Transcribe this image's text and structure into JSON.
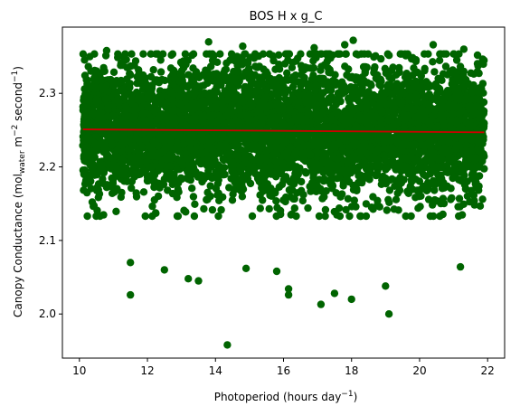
{
  "chart_data": {
    "type": "scatter",
    "title": "BOS H x g_C",
    "xlabel": "Photoperiod (hours day",
    "xlabel_sup": "−1",
    "xlabel_end": ")",
    "ylabel_parts": {
      "a": "Canopy Conductance (mol",
      "sub": "water",
      "b": " m",
      "sup1": "−2",
      "c": " second",
      "sup2": "−1",
      "d": ")"
    },
    "xlim": [
      9.5,
      22.5
    ],
    "ylim": [
      1.94,
      2.39
    ],
    "x_ticks": [
      10,
      12,
      14,
      16,
      18,
      20,
      22
    ],
    "y_ticks": [
      2.0,
      2.1,
      2.2,
      2.3
    ],
    "y_tick_labels": [
      "2.0",
      "2.1",
      "2.2",
      "2.3"
    ],
    "grid": false,
    "point_color": "#006400",
    "line_color": "#cc0000",
    "point_cloud": {
      "x_range": [
        10.1,
        21.9
      ],
      "y_center": 2.25,
      "y_core_spread": 0.045,
      "count": 5000
    },
    "outliers": [
      {
        "x": 14.35,
        "y": 1.958
      },
      {
        "x": 19.1,
        "y": 2.0
      },
      {
        "x": 11.5,
        "y": 2.026
      },
      {
        "x": 16.15,
        "y": 2.026
      },
      {
        "x": 16.15,
        "y": 2.034
      },
      {
        "x": 17.1,
        "y": 2.013
      },
      {
        "x": 17.5,
        "y": 2.028
      },
      {
        "x": 18.0,
        "y": 2.02
      },
      {
        "x": 19.0,
        "y": 2.038
      },
      {
        "x": 13.5,
        "y": 2.045
      },
      {
        "x": 13.2,
        "y": 2.048
      },
      {
        "x": 12.5,
        "y": 2.06
      },
      {
        "x": 14.9,
        "y": 2.062
      },
      {
        "x": 15.8,
        "y": 2.058
      },
      {
        "x": 21.2,
        "y": 2.064
      },
      {
        "x": 11.5,
        "y": 2.07
      },
      {
        "x": 14.8,
        "y": 2.364
      },
      {
        "x": 17.8,
        "y": 2.366
      },
      {
        "x": 18.05,
        "y": 2.372
      },
      {
        "x": 20.4,
        "y": 2.366
      },
      {
        "x": 21.3,
        "y": 2.36
      },
      {
        "x": 10.8,
        "y": 2.358
      },
      {
        "x": 13.8,
        "y": 2.37
      },
      {
        "x": 16.9,
        "y": 2.362
      }
    ],
    "trend_line": {
      "x": [
        10.1,
        21.9
      ],
      "y": [
        2.251,
        2.247
      ]
    }
  }
}
